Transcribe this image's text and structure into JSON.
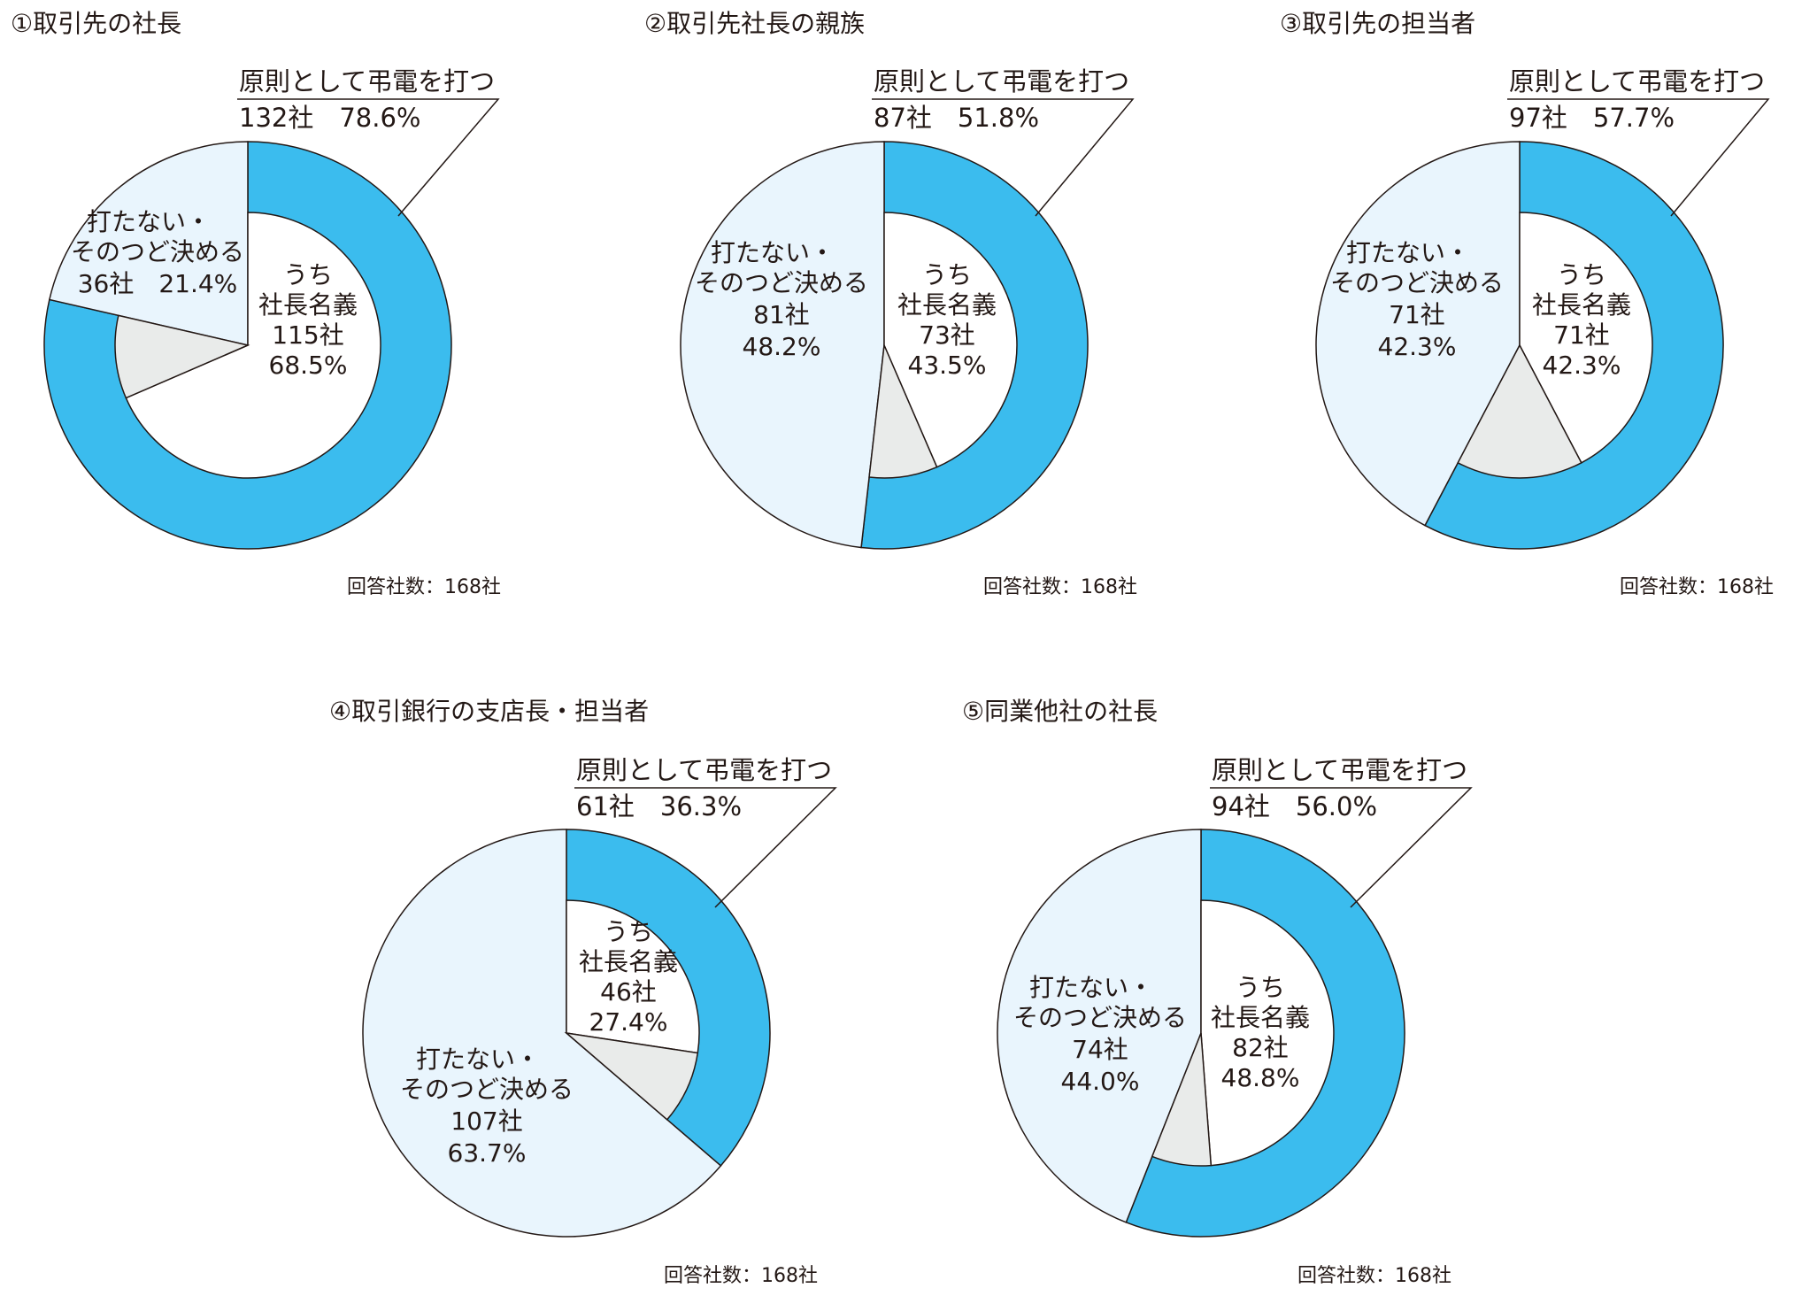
{
  "colors": {
    "outer_do": "#3bbcee",
    "outer_not": "#e9f5fd",
    "inner_other": "#e9ebea",
    "inner_president": "#ffffff",
    "stroke": "#231815"
  },
  "chart_data": [
    {
      "type": "pie",
      "title": "①取引先の社長",
      "slices": [
        {
          "label": "原則として弔電を打つ",
          "count_text": "132社",
          "pct_text": "78.6%",
          "value": 78.6
        },
        {
          "label": "打たない・そのつど決める",
          "count_text": "36社",
          "pct_text": "21.4%",
          "value": 21.4
        }
      ],
      "inner": {
        "label": "うち社長名義",
        "line1": "うち",
        "line2": "社長名義",
        "count_text": "115社",
        "pct_text": "68.5%",
        "value": 68.5
      },
      "total_text": "回答社数：168社"
    },
    {
      "type": "pie",
      "title": "②取引先社長の親族",
      "slices": [
        {
          "label": "原則として弔電を打つ",
          "count_text": "87社",
          "pct_text": "51.8%",
          "value": 51.8
        },
        {
          "label": "打たない・そのつど決める",
          "count_text": "81社",
          "pct_text": "48.2%",
          "value": 48.2
        }
      ],
      "inner": {
        "label": "うち社長名義",
        "line1": "うち",
        "line2": "社長名義",
        "count_text": "73社",
        "pct_text": "43.5%",
        "value": 43.5
      },
      "total_text": "回答社数：168社"
    },
    {
      "type": "pie",
      "title": "③取引先の担当者",
      "slices": [
        {
          "label": "原則として弔電を打つ",
          "count_text": "97社",
          "pct_text": "57.7%",
          "value": 57.7
        },
        {
          "label": "打たない・そのつど決める",
          "count_text": "71社",
          "pct_text": "42.3%",
          "value": 42.3
        }
      ],
      "inner": {
        "label": "うち社長名義",
        "line1": "うち",
        "line2": "社長名義",
        "count_text": "71社",
        "pct_text": "42.3%",
        "value": 42.3
      },
      "total_text": "回答社数：168社"
    },
    {
      "type": "pie",
      "title": "④取引銀行の支店長・担当者",
      "slices": [
        {
          "label": "原則として弔電を打つ",
          "count_text": "61社",
          "pct_text": "36.3%",
          "value": 36.3
        },
        {
          "label": "打たない・そのつど決める",
          "count_text": "107社",
          "pct_text": "63.7%",
          "value": 63.7
        }
      ],
      "inner": {
        "label": "うち社長名義",
        "line1": "うち",
        "line2": "社長名義",
        "count_text": "46社",
        "pct_text": "27.4%",
        "value": 27.4
      },
      "total_text": "回答社数：168社"
    },
    {
      "type": "pie",
      "title": "⑤同業他社の社長",
      "slices": [
        {
          "label": "原則として弔電を打つ",
          "count_text": "94社",
          "pct_text": "56.0%",
          "value": 56.0
        },
        {
          "label": "打たない・そのつど決める",
          "count_text": "74社",
          "pct_text": "44.0%",
          "value": 44.0
        }
      ],
      "inner": {
        "label": "うち社長名義",
        "line1": "うち",
        "line2": "社長名義",
        "count_text": "82社",
        "pct_text": "48.8%",
        "value": 48.8
      },
      "total_text": "回答社数：168社"
    }
  ]
}
